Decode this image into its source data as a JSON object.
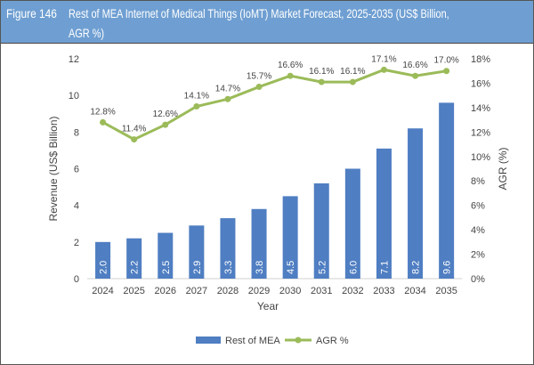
{
  "title": {
    "figure": "Figure 146",
    "line1": "Rest of MEA Internet of Medical Things (IoMT) Market Forecast, 2025-2035 (US$ Billion,",
    "line2": "AGR %)"
  },
  "chart_data": {
    "type": "bar+line",
    "categories": [
      "2024",
      "2025",
      "2026",
      "2027",
      "2028",
      "2029",
      "2030",
      "2031",
      "2032",
      "2033",
      "2034",
      "2035"
    ],
    "series": [
      {
        "name": "Rest of MEA",
        "type": "bar",
        "axis": "left",
        "color": "#4f7ec2",
        "values": [
          2.0,
          2.2,
          2.5,
          2.9,
          3.3,
          3.8,
          4.5,
          5.2,
          6.0,
          7.1,
          8.2,
          9.6
        ],
        "labels": [
          "2.0",
          "2.2",
          "2.5",
          "2.9",
          "3.3",
          "3.8",
          "4.5",
          "5.2",
          "6.0",
          "7.1",
          "8.2",
          "9.6"
        ]
      },
      {
        "name": "AGR %",
        "type": "line",
        "axis": "right",
        "color": "#9bbb59",
        "values": [
          12.8,
          11.4,
          12.6,
          14.1,
          14.7,
          15.7,
          16.6,
          16.1,
          16.1,
          17.1,
          16.6,
          17.0
        ],
        "labels": [
          "12.8%",
          "11.4%",
          "12.6%",
          "14.1%",
          "14.7%",
          "15.7%",
          "16.6%",
          "16.1%",
          "16.1%",
          "17.1%",
          "16.6%",
          "17.0%"
        ]
      }
    ],
    "xlabel": "Year",
    "ylabel": "Revenue (US$ Billion)",
    "y2label": "AGR (%)",
    "ylim": [
      0,
      12
    ],
    "yticks": [
      "0",
      "2",
      "4",
      "6",
      "8",
      "10",
      "12"
    ],
    "y2lim": [
      0,
      18
    ],
    "y2ticks": [
      "0%",
      "2%",
      "4%",
      "6%",
      "8%",
      "10%",
      "12%",
      "14%",
      "16%",
      "18%"
    ],
    "grid": false,
    "legend": "bottom"
  }
}
